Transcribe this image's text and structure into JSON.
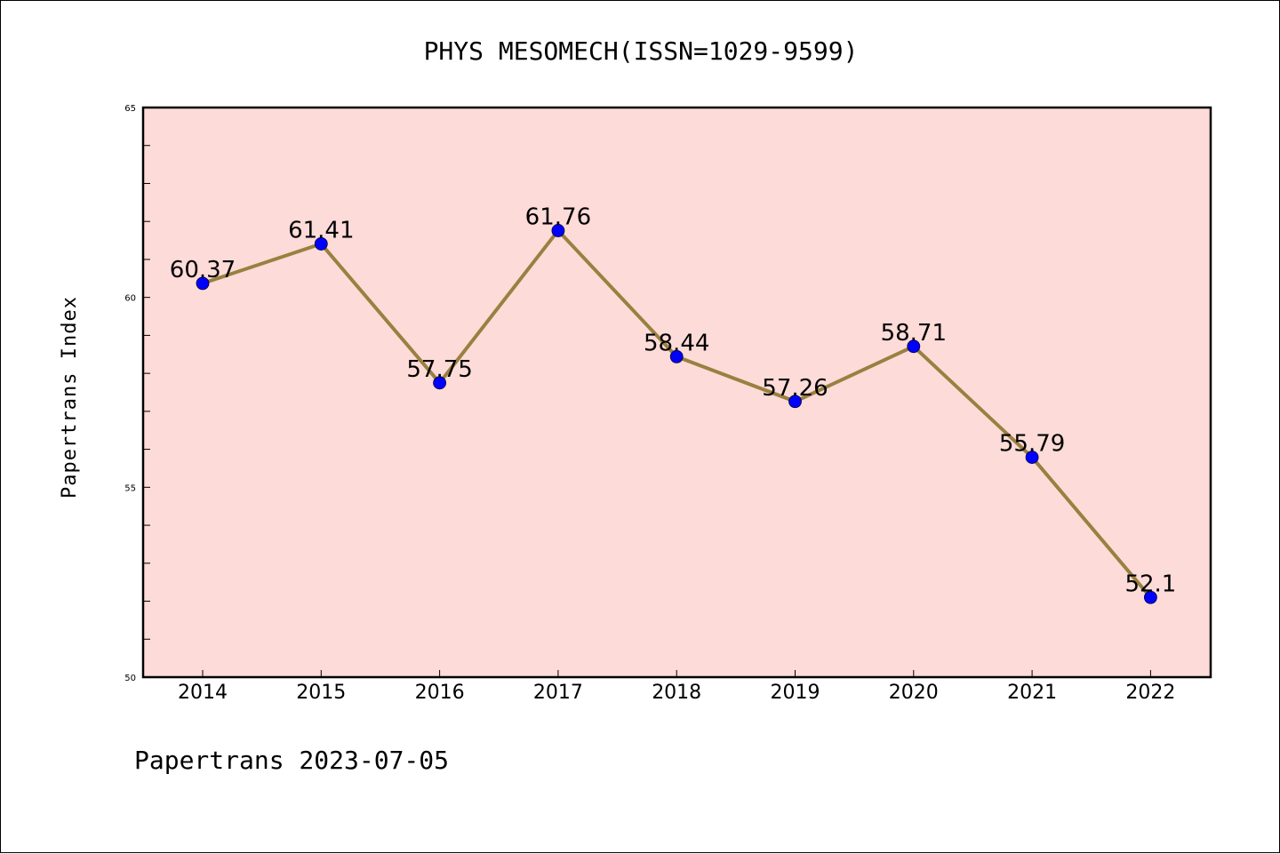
{
  "chart_data": {
    "type": "line",
    "title": "PHYS MESOMECH(ISSN=1029-9599)",
    "xlabel": "",
    "ylabel": "Papertrans Index",
    "footer": "Papertrans 2023-07-05",
    "categories": [
      "2014",
      "2015",
      "2016",
      "2017",
      "2018",
      "2019",
      "2020",
      "2021",
      "2022"
    ],
    "values": [
      60.37,
      61.41,
      57.75,
      61.76,
      58.44,
      57.26,
      58.71,
      55.79,
      52.1
    ],
    "data_labels": [
      "60.37",
      "61.41",
      "57.75",
      "61.76",
      "58.44",
      "57.26",
      "58.71",
      "55.79",
      "52.1"
    ],
    "ylim": [
      50,
      65
    ],
    "yticks": [
      50,
      55,
      60,
      65
    ],
    "grid": false,
    "legend": "none",
    "colors": {
      "plot_background": "#fddbd8",
      "line": "#9a8040",
      "marker": "#0000ff"
    }
  }
}
